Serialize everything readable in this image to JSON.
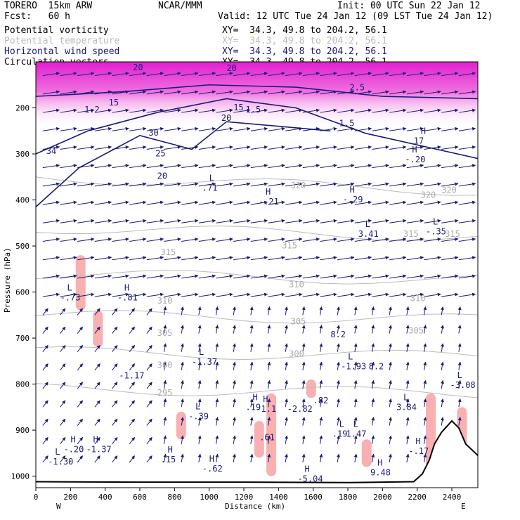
{
  "header": {
    "model": "TORERO  15km ARW",
    "center": "NCAR/MMM",
    "init": "Init: 00 UTC Sun 22 Jan 12",
    "fcst": "Fcst:   60 h",
    "valid": "Valid: 12 UTC Tue 24 Jan 12 (09 LST Tue 24 Jan 12)",
    "fields": [
      {
        "name": "Potential vorticity",
        "xy": "XY=  34.3, 49.8 to 204.2, 56.1",
        "color": "#000000"
      },
      {
        "name": "Potential temperature",
        "xy": "XY=  34.3, 49.8 to 204.2, 56.1",
        "color": "#bbbbbb"
      },
      {
        "name": "Horizontal wind speed",
        "xy": "XY=  34.3, 49.8 to 204.2, 56.1",
        "color": "#1a1a7a"
      },
      {
        "name": "Circulation vectors",
        "xy": "XY=  34.3, 49.8 to 204.2, 56.1",
        "color": "#000000"
      }
    ]
  },
  "chart_data": {
    "type": "cross-section",
    "xlabel": "Distance (km)",
    "ylabel": "Pressure (hPa)",
    "x_ticks": [
      0,
      200,
      400,
      600,
      800,
      1000,
      1200,
      1400,
      1600,
      1800,
      2000,
      2200,
      2400
    ],
    "y_ticks": [
      200,
      300,
      400,
      500,
      600,
      700,
      800,
      900,
      1000
    ],
    "xlim": [
      0,
      2550
    ],
    "ylim": [
      1025,
      100
    ],
    "x_end_labels": {
      "left": "W",
      "right": "E"
    },
    "theta_labels": [
      {
        "x": 1470,
        "p": 375,
        "text": "320"
      },
      {
        "x": 2220,
        "p": 395,
        "text": "320"
      },
      {
        "x": 2340,
        "p": 385,
        "text": "320"
      },
      {
        "x": 2120,
        "p": 480,
        "text": "315"
      },
      {
        "x": 2360,
        "p": 480,
        "text": "315"
      },
      {
        "x": 1420,
        "p": 505,
        "text": "315"
      },
      {
        "x": 720,
        "p": 520,
        "text": "315"
      },
      {
        "x": 1460,
        "p": 590,
        "text": "310"
      },
      {
        "x": 700,
        "p": 625,
        "text": "310"
      },
      {
        "x": 2160,
        "p": 620,
        "text": "310"
      },
      {
        "x": 1470,
        "p": 670,
        "text": "305"
      },
      {
        "x": 700,
        "p": 695,
        "text": "305"
      },
      {
        "x": 2150,
        "p": 690,
        "text": "305"
      },
      {
        "x": 1460,
        "p": 740,
        "text": "300"
      },
      {
        "x": 700,
        "p": 765,
        "text": "300"
      },
      {
        "x": 700,
        "p": 825,
        "text": "295"
      }
    ],
    "speed_labels": [
      {
        "x": 560,
        "p": 118,
        "text": "20"
      },
      {
        "x": 1100,
        "p": 120,
        "text": "20"
      },
      {
        "x": 1070,
        "p": 228,
        "text": "20"
      },
      {
        "x": 700,
        "p": 354,
        "text": "20"
      },
      {
        "x": 650,
        "p": 260,
        "text": "30"
      },
      {
        "x": 690,
        "p": 305,
        "text": "25"
      },
      {
        "x": 60,
        "p": 300,
        "text": "34"
      },
      {
        "x": 420,
        "p": 195,
        "text": "15"
      },
      {
        "x": 1140,
        "p": 205,
        "text": "15"
      }
    ],
    "pv_labels": [
      {
        "x": 1750,
        "p": 240,
        "text": "1.5"
      },
      {
        "x": 1810,
        "p": 162,
        "text": "2.5"
      },
      {
        "x": 1210,
        "p": 210,
        "text": "1.5"
      },
      {
        "x": 280,
        "p": 210,
        "text": "1.2"
      },
      {
        "x": 1920,
        "p": 768,
        "text": "8.2"
      }
    ],
    "extrema": [
      {
        "x": 2180,
        "p": 278,
        "type": "H",
        "value": "17"
      },
      {
        "x": 2130,
        "p": 318,
        "type": "H",
        "value": "-.20"
      },
      {
        "x": 960,
        "p": 380,
        "type": "L",
        "value": ".71"
      },
      {
        "x": 1285,
        "p": 410,
        "type": "H",
        "value": "-.21"
      },
      {
        "x": 1770,
        "p": 405,
        "type": "H",
        "value": "-.29"
      },
      {
        "x": 1860,
        "p": 480,
        "type": "L",
        "value": "3.41"
      },
      {
        "x": 2250,
        "p": 475,
        "type": "L",
        "value": "-.35"
      },
      {
        "x": 140,
        "p": 618,
        "type": "L",
        "value": "-.73"
      },
      {
        "x": 470,
        "p": 618,
        "type": "H",
        "value": "-.81"
      },
      {
        "x": 900,
        "p": 758,
        "type": "L",
        "value": "-1.37"
      },
      {
        "x": 1760,
        "p": 768,
        "type": "L",
        "value": "-1.93"
      },
      {
        "x": 1700,
        "p": 698,
        "type": "",
        "value": "8.2"
      },
      {
        "x": 2390,
        "p": 808,
        "type": "L",
        "value": "-3.08"
      },
      {
        "x": 480,
        "p": 788,
        "type": "",
        "value": "-1.17"
      },
      {
        "x": 1210,
        "p": 856,
        "type": "H",
        "value": ".19"
      },
      {
        "x": 1270,
        "p": 860,
        "type": "H",
        "value": "-1.1"
      },
      {
        "x": 1450,
        "p": 860,
        "type": "",
        "value": "-2.82"
      },
      {
        "x": 1600,
        "p": 842,
        "type": "",
        "value": ".82"
      },
      {
        "x": 2080,
        "p": 856,
        "type": "L",
        "value": "3.84"
      },
      {
        "x": 880,
        "p": 876,
        "type": "L",
        "value": "-.39"
      },
      {
        "x": 1290,
        "p": 922,
        "type": "",
        "value": ".61"
      },
      {
        "x": 1710,
        "p": 914,
        "type": "L",
        "value": ".19"
      },
      {
        "x": 1790,
        "p": 914,
        "type": "L",
        "value": "1.47"
      },
      {
        "x": 2150,
        "p": 952,
        "type": "H",
        "value": "-.17"
      },
      {
        "x": 160,
        "p": 948,
        "type": "H",
        "value": "-.20"
      },
      {
        "x": 290,
        "p": 948,
        "type": "H",
        "value": "-1.37"
      },
      {
        "x": 70,
        "p": 975,
        "type": "L",
        "value": "-1.30"
      },
      {
        "x": 720,
        "p": 970,
        "type": "H",
        "value": ".15"
      },
      {
        "x": 960,
        "p": 990,
        "type": "H",
        "value": "-.62"
      },
      {
        "x": 1510,
        "p": 1012,
        "type": "H",
        "value": "-5.04"
      },
      {
        "x": 1930,
        "p": 998,
        "type": "H",
        "value": "9.48"
      }
    ]
  }
}
